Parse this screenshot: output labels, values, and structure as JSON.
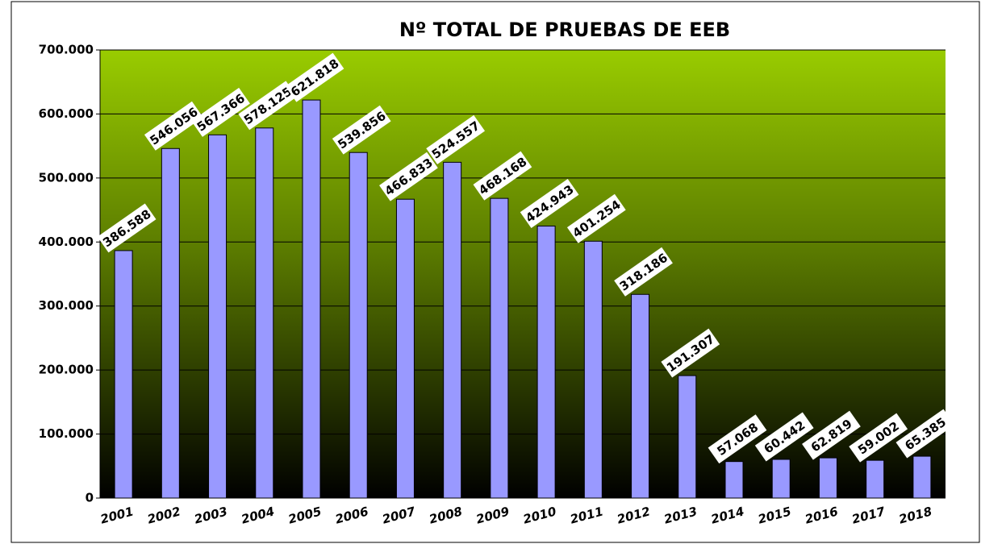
{
  "chart_data": {
    "type": "bar",
    "title": "Nº TOTAL DE PRUEBAS DE EEB",
    "categories": [
      "2001",
      "2002",
      "2003",
      "2004",
      "2005",
      "2006",
      "2007",
      "2008",
      "2009",
      "2010",
      "2011",
      "2012",
      "2013",
      "2014",
      "2015",
      "2016",
      "2017",
      "2018"
    ],
    "values": [
      386588,
      546056,
      567366,
      578125,
      621818,
      539856,
      466833,
      524557,
      468168,
      424943,
      401254,
      318186,
      191307,
      57068,
      60442,
      62819,
      59002,
      65385
    ],
    "value_labels": [
      "386.588",
      "546.056",
      "567.366",
      "578.125",
      "621.818",
      "539.856",
      "466.833",
      "524.557",
      "468.168",
      "424.943",
      "401.254",
      "318.186",
      "191.307",
      "57.068",
      "60.442",
      "62.819",
      "59.002",
      "65.385"
    ],
    "color": "#9999ff",
    "ylim": [
      0,
      700000
    ],
    "yticks": [
      0,
      {
        "value": 100000,
        "label": "100.000"
      },
      {
        "value": 200000,
        "label": "200.000"
      },
      {
        "value": 300000,
        "label": "300.000"
      },
      {
        "value": 400000,
        "label": "400.000"
      },
      {
        "value": 500000,
        "label": "500.000"
      },
      {
        "value": 600000,
        "label": "600.000"
      },
      {
        "value": 700000,
        "label": "700.000"
      }
    ],
    "grid": true
  }
}
